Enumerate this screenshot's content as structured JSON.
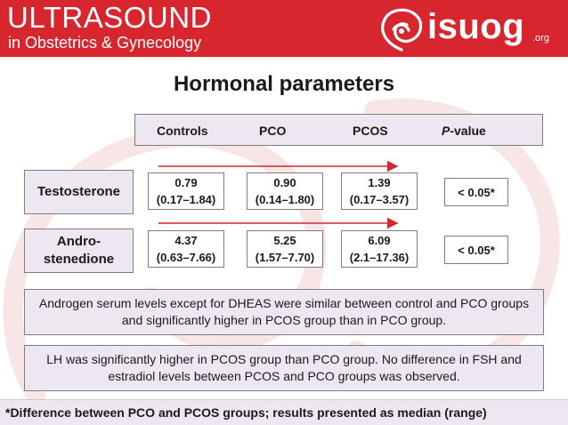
{
  "header": {
    "brand_line1": "ULTRASOUND",
    "brand_line2": "in Obstetrics & Gynecology",
    "logo_text": "isuog",
    "logo_suffix": ".org",
    "background_color": "#d7262e"
  },
  "slide": {
    "title": "Hormonal parameters",
    "columns": {
      "controls": "Controls",
      "pco": "PCO",
      "pcos": "PCOS",
      "pvalue_italic": "P",
      "pvalue_rest": "-value"
    },
    "rows": [
      {
        "label": "Testosterone",
        "controls": {
          "median": "0.79",
          "range": "(0.17–1.84)"
        },
        "pco": {
          "median": "0.90",
          "range": "(0.14–1.80)"
        },
        "pcos": {
          "median": "1.39",
          "range": "(0.17–3.57)"
        },
        "pvalue": "< 0.05*"
      },
      {
        "label_line1": "Andro-",
        "label_line2": "stenedione",
        "controls": {
          "median": "4.37",
          "range": "(0.63–7.66)"
        },
        "pco": {
          "median": "5.25",
          "range": "(1.57–7.70)"
        },
        "pcos": {
          "median": "6.09",
          "range": "(2.1–17.36)"
        },
        "pvalue": "< 0.05*"
      }
    ],
    "note1": "Androgen serum levels except for DHEAS were similar between control and PCO groups and significantly higher in PCOS group than in PCO group.",
    "note2": "LH was significantly higher in PCOS group than PCO group. No difference in FSH and estradiol levels between PCOS and PCO groups was observed.",
    "footnote": "*Difference between PCO and PCOS groups; results presented as median (range)",
    "accent_color": "#d7262e",
    "box_fill": "#ede7f1"
  }
}
